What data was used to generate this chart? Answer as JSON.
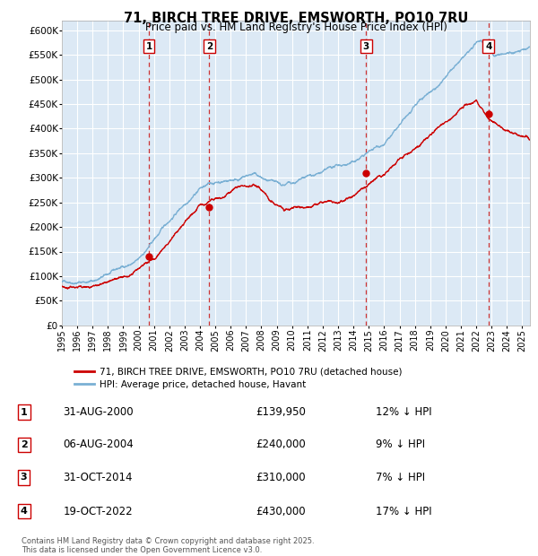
{
  "title": "71, BIRCH TREE DRIVE, EMSWORTH, PO10 7RU",
  "subtitle": "Price paid vs. HM Land Registry's House Price Index (HPI)",
  "ylim": [
    0,
    620000
  ],
  "yticks": [
    0,
    50000,
    100000,
    150000,
    200000,
    250000,
    300000,
    350000,
    400000,
    450000,
    500000,
    550000,
    600000
  ],
  "ytick_labels": [
    "£0",
    "£50K",
    "£100K",
    "£150K",
    "£200K",
    "£250K",
    "£300K",
    "£350K",
    "£400K",
    "£450K",
    "£500K",
    "£550K",
    "£600K"
  ],
  "plot_bg_color": "#dce9f5",
  "grid_color": "#ffffff",
  "red_line_color": "#cc0000",
  "blue_line_color": "#7ab0d4",
  "dashed_line_color": "#cc3333",
  "purchases": [
    {
      "date_x": 2000.67,
      "price": 139950,
      "label": "1"
    },
    {
      "date_x": 2004.6,
      "price": 240000,
      "label": "2"
    },
    {
      "date_x": 2014.83,
      "price": 310000,
      "label": "3"
    },
    {
      "date_x": 2022.8,
      "price": 430000,
      "label": "4"
    }
  ],
  "legend_entries": [
    {
      "label": "71, BIRCH TREE DRIVE, EMSWORTH, PO10 7RU (detached house)",
      "color": "#cc0000"
    },
    {
      "label": "HPI: Average price, detached house, Havant",
      "color": "#7ab0d4"
    }
  ],
  "table_entries": [
    {
      "num": "1",
      "date": "31-AUG-2000",
      "price": "£139,950",
      "pct": "12%",
      "dir": "↓",
      "ref": "HPI"
    },
    {
      "num": "2",
      "date": "06-AUG-2004",
      "price": "£240,000",
      "pct": "9%",
      "dir": "↓",
      "ref": "HPI"
    },
    {
      "num": "3",
      "date": "31-OCT-2014",
      "price": "£310,000",
      "pct": "7%",
      "dir": "↓",
      "ref": "HPI"
    },
    {
      "num": "4",
      "date": "19-OCT-2022",
      "price": "£430,000",
      "pct": "17%",
      "dir": "↓",
      "ref": "HPI"
    }
  ],
  "footer": "Contains HM Land Registry data © Crown copyright and database right 2025.\nThis data is licensed under the Open Government Licence v3.0.",
  "xmin": 1995.0,
  "xmax": 2025.5
}
